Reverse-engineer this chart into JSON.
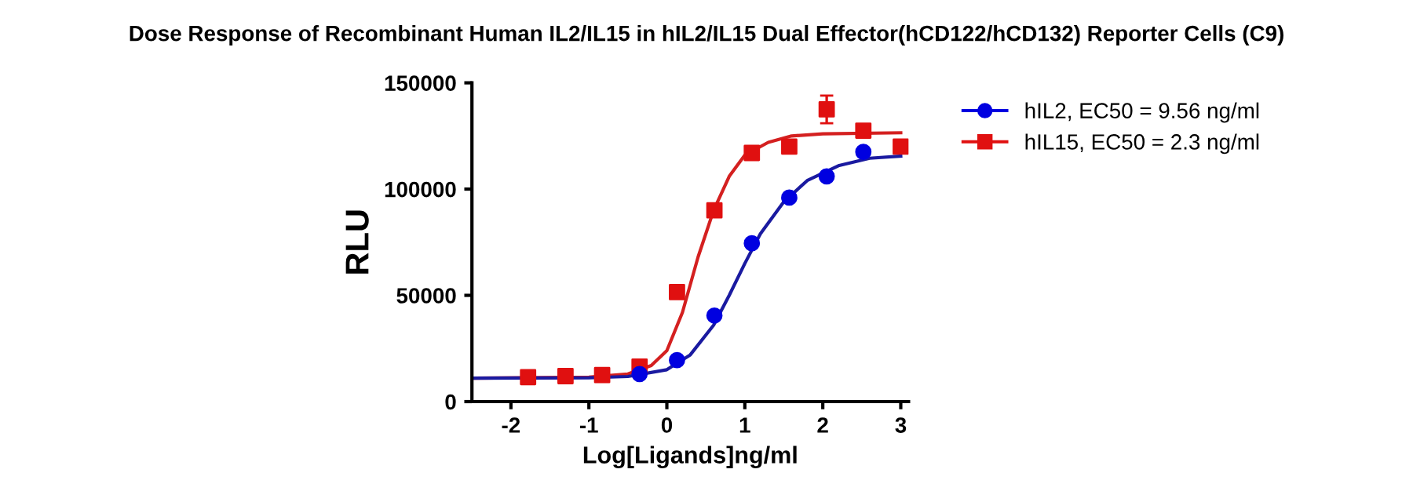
{
  "chart_data": {
    "type": "scatter",
    "title": "Dose Response of Recombinant Human IL2/IL15 in hIL2/IL15 Dual Effector(hCD122/hCD132) Reporter Cells (C9)",
    "xlabel": "Log[Ligands]ng/ml",
    "ylabel": "RLU",
    "xlim": [
      -2.5,
      3.1
    ],
    "xticks": [
      -2,
      -1,
      0,
      1,
      2,
      3
    ],
    "ylim": [
      0,
      150000
    ],
    "yticks": [
      0,
      50000,
      100000,
      150000
    ],
    "grid": false,
    "legend": "top right",
    "series": [
      {
        "name": "hIL2, EC50 = 9.56 ng/ml",
        "color": "#0000e0",
        "marker": "circle",
        "x": [
          -0.35,
          0.13,
          0.61,
          1.09,
          1.57,
          2.05,
          2.52
        ],
        "values": [
          13000,
          19500,
          40500,
          74500,
          96000,
          106000,
          117500
        ]
      },
      {
        "name": "hIL15, EC50 = 2.3 ng/ml",
        "color": "#e01010",
        "marker": "square",
        "x": [
          -1.78,
          -1.3,
          -0.83,
          -0.35,
          0.13,
          0.61,
          1.09,
          1.57,
          2.05,
          2.52,
          3.0
        ],
        "values": [
          11500,
          12000,
          12500,
          16500,
          51500,
          90000,
          117000,
          120000,
          137500,
          127500,
          120000
        ],
        "errors": [
          null,
          null,
          null,
          null,
          null,
          null,
          null,
          null,
          6500,
          null,
          null
        ]
      },
      {
        "type": "line",
        "color": "#1a1aa0",
        "x": [
          -2.5,
          -1.0,
          -0.5,
          0.0,
          0.3,
          0.6,
          0.8,
          1.0,
          1.2,
          1.5,
          1.8,
          2.2,
          2.6,
          3.0
        ],
        "values": [
          11000,
          11200,
          11800,
          15000,
          22000,
          36000,
          50000,
          65000,
          79000,
          94000,
          104000,
          111000,
          114500,
          115500
        ]
      },
      {
        "type": "line",
        "color": "#d42020",
        "x": [
          -2.5,
          -1.0,
          -0.5,
          -0.2,
          0.0,
          0.2,
          0.4,
          0.6,
          0.8,
          1.0,
          1.3,
          1.6,
          2.0,
          3.0
        ],
        "values": [
          11000,
          11500,
          13000,
          17000,
          24000,
          42000,
          68000,
          90000,
          106000,
          116000,
          122000,
          125000,
          126000,
          126500
        ]
      }
    ]
  }
}
